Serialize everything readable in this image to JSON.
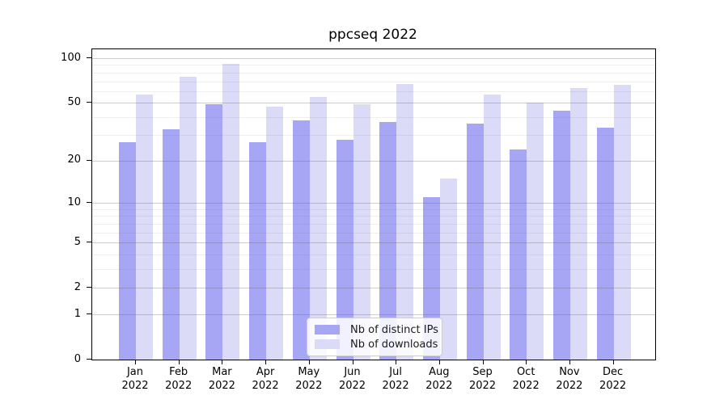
{
  "title": "ppcseq 2022",
  "chart_data": {
    "type": "bar",
    "title": "ppcseq 2022",
    "categories": [
      "Jan",
      "Feb",
      "Mar",
      "Apr",
      "May",
      "Jun",
      "Jul",
      "Aug",
      "Sep",
      "Oct",
      "Nov",
      "Dec"
    ],
    "x_year_label": "2022",
    "series": [
      {
        "name": "Nb of distinct IPs",
        "color": "#a6a6f5",
        "values": [
          27,
          33,
          49,
          27,
          38,
          28,
          37,
          11,
          36,
          24,
          44,
          34
        ]
      },
      {
        "name": "Nb of downloads",
        "color": "#dbdbf8",
        "values": [
          57,
          75,
          92,
          47,
          55,
          49,
          67,
          15,
          57,
          50,
          63,
          66
        ]
      }
    ],
    "xlabel": "",
    "ylabel": "",
    "yscale": "log1p",
    "major_yticks": [
      0,
      1,
      2,
      5,
      10,
      20,
      50,
      100
    ],
    "minor_yticks": [
      3,
      4,
      6,
      7,
      8,
      9,
      30,
      40,
      60,
      70,
      80,
      90
    ],
    "ylim": [
      0,
      114.7
    ],
    "grid": "horizontal",
    "legend_position": "lower center"
  }
}
